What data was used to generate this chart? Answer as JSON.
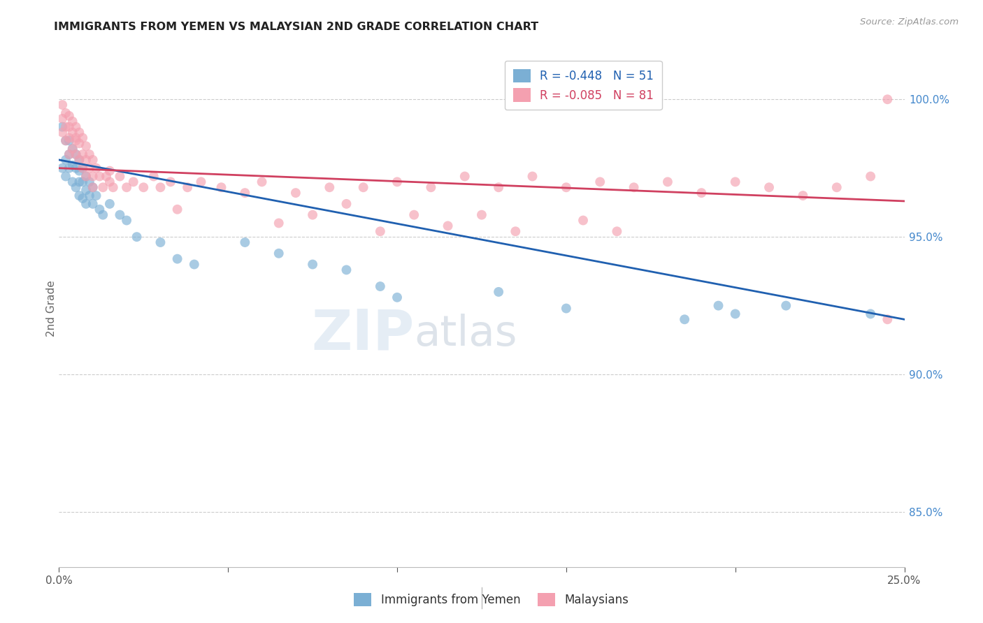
{
  "title": "IMMIGRANTS FROM YEMEN VS MALAYSIAN 2ND GRADE CORRELATION CHART",
  "source": "Source: ZipAtlas.com",
  "ylabel": "2nd Grade",
  "right_yticks": [
    "85.0%",
    "90.0%",
    "95.0%",
    "100.0%"
  ],
  "right_ytick_vals": [
    0.85,
    0.9,
    0.95,
    1.0
  ],
  "legend_blue": "R = -0.448   N = 51",
  "legend_pink": "R = -0.085   N = 81",
  "legend_label_blue": "Immigrants from Yemen",
  "legend_label_pink": "Malaysians",
  "blue_color": "#7bafd4",
  "pink_color": "#f4a0b0",
  "blue_line_color": "#2060b0",
  "pink_line_color": "#d04060",
  "watermark_zip": "ZIP",
  "watermark_atlas": "atlas",
  "xmin": 0.0,
  "xmax": 0.25,
  "ymin": 0.83,
  "ymax": 1.018,
  "blue_line_x": [
    0.0,
    0.25
  ],
  "blue_line_y": [
    0.978,
    0.92
  ],
  "pink_line_x": [
    0.0,
    0.25
  ],
  "pink_line_y": [
    0.975,
    0.963
  ],
  "blue_scatter_x": [
    0.001,
    0.001,
    0.002,
    0.002,
    0.002,
    0.003,
    0.003,
    0.003,
    0.004,
    0.004,
    0.004,
    0.005,
    0.005,
    0.005,
    0.006,
    0.006,
    0.006,
    0.006,
    0.007,
    0.007,
    0.007,
    0.008,
    0.008,
    0.008,
    0.009,
    0.009,
    0.01,
    0.01,
    0.011,
    0.012,
    0.013,
    0.015,
    0.018,
    0.02,
    0.023,
    0.03,
    0.035,
    0.04,
    0.055,
    0.065,
    0.075,
    0.085,
    0.095,
    0.1,
    0.13,
    0.15,
    0.185,
    0.195,
    0.2,
    0.215,
    0.24
  ],
  "blue_scatter_y": [
    0.99,
    0.975,
    0.985,
    0.978,
    0.972,
    0.985,
    0.98,
    0.975,
    0.982,
    0.976,
    0.97,
    0.98,
    0.975,
    0.968,
    0.978,
    0.974,
    0.97,
    0.965,
    0.975,
    0.97,
    0.964,
    0.972,
    0.967,
    0.962,
    0.97,
    0.965,
    0.968,
    0.962,
    0.965,
    0.96,
    0.958,
    0.962,
    0.958,
    0.956,
    0.95,
    0.948,
    0.942,
    0.94,
    0.948,
    0.944,
    0.94,
    0.938,
    0.932,
    0.928,
    0.93,
    0.924,
    0.92,
    0.925,
    0.922,
    0.925,
    0.922
  ],
  "pink_scatter_x": [
    0.001,
    0.001,
    0.001,
    0.002,
    0.002,
    0.002,
    0.003,
    0.003,
    0.003,
    0.003,
    0.004,
    0.004,
    0.004,
    0.005,
    0.005,
    0.005,
    0.006,
    0.006,
    0.006,
    0.007,
    0.007,
    0.007,
    0.008,
    0.008,
    0.008,
    0.009,
    0.009,
    0.01,
    0.01,
    0.01,
    0.011,
    0.012,
    0.013,
    0.014,
    0.015,
    0.016,
    0.018,
    0.02,
    0.022,
    0.025,
    0.028,
    0.03,
    0.033,
    0.038,
    0.042,
    0.048,
    0.055,
    0.06,
    0.07,
    0.08,
    0.09,
    0.1,
    0.11,
    0.12,
    0.13,
    0.14,
    0.15,
    0.16,
    0.17,
    0.18,
    0.19,
    0.2,
    0.21,
    0.22,
    0.23,
    0.24,
    0.245,
    0.005,
    0.015,
    0.035,
    0.065,
    0.075,
    0.085,
    0.095,
    0.105,
    0.115,
    0.125,
    0.135,
    0.155,
    0.165,
    0.245
  ],
  "pink_scatter_y": [
    0.998,
    0.993,
    0.988,
    0.995,
    0.99,
    0.985,
    0.994,
    0.99,
    0.986,
    0.98,
    0.992,
    0.988,
    0.982,
    0.99,
    0.986,
    0.98,
    0.988,
    0.984,
    0.978,
    0.986,
    0.98,
    0.975,
    0.983,
    0.978,
    0.972,
    0.98,
    0.975,
    0.978,
    0.972,
    0.968,
    0.975,
    0.972,
    0.968,
    0.972,
    0.97,
    0.968,
    0.972,
    0.968,
    0.97,
    0.968,
    0.972,
    0.968,
    0.97,
    0.968,
    0.97,
    0.968,
    0.966,
    0.97,
    0.966,
    0.968,
    0.968,
    0.97,
    0.968,
    0.972,
    0.968,
    0.972,
    0.968,
    0.97,
    0.968,
    0.97,
    0.966,
    0.97,
    0.968,
    0.965,
    0.968,
    0.972,
    1.0,
    0.985,
    0.974,
    0.96,
    0.955,
    0.958,
    0.962,
    0.952,
    0.958,
    0.954,
    0.958,
    0.952,
    0.956,
    0.952,
    0.92
  ]
}
